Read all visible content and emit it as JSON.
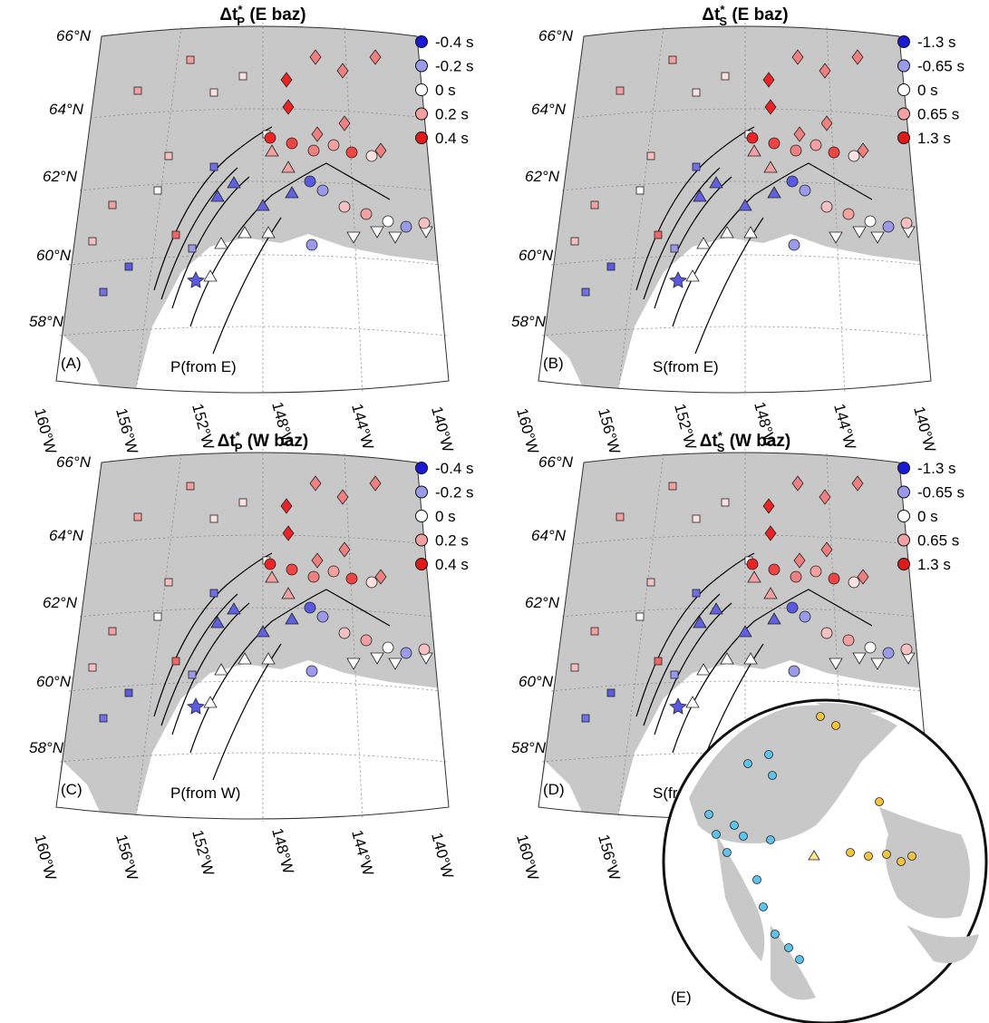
{
  "panels": [
    {
      "title": {
        "main": "Δt",
        "sup": "*",
        "sub": "P",
        "rest": " (E baz)"
      },
      "letter": "(A)",
      "phase": "P(from E)",
      "legend": [
        {
          "label": "-0.4 s",
          "color": "#1a1ad6"
        },
        {
          "label": "-0.2 s",
          "color": "#9a9aea"
        },
        {
          "label": "0 s",
          "color": "#ffffff"
        },
        {
          "label": "0.2 s",
          "color": "#f2a0a0"
        },
        {
          "label": "0.4 s",
          "color": "#e21a1a"
        }
      ]
    },
    {
      "title": {
        "main": "Δt",
        "sup": "*",
        "sub": "S",
        "rest": " (E baz)"
      },
      "letter": "(B)",
      "phase": "S(from E)",
      "legend": [
        {
          "label": "-1.3 s",
          "color": "#1a1ad6"
        },
        {
          "label": "-0.65 s",
          "color": "#9a9aea"
        },
        {
          "label": "0 s",
          "color": "#ffffff"
        },
        {
          "label": "0.65 s",
          "color": "#f2a0a0"
        },
        {
          "label": "1.3 s",
          "color": "#e21a1a"
        }
      ]
    },
    {
      "title": {
        "main": "Δt",
        "sup": "*",
        "sub": "P",
        "rest": " (W baz)"
      },
      "letter": "(C)",
      "phase": "P(from W)",
      "legend": [
        {
          "label": "-0.4 s",
          "color": "#1a1ad6"
        },
        {
          "label": "-0.2 s",
          "color": "#9a9aea"
        },
        {
          "label": "0 s",
          "color": "#ffffff"
        },
        {
          "label": "0.2 s",
          "color": "#f2a0a0"
        },
        {
          "label": "0.4 s",
          "color": "#e21a1a"
        }
      ]
    },
    {
      "title": {
        "main": "Δt",
        "sup": "*",
        "sub": "S",
        "rest": " (W baz)"
      },
      "letter": "(D)",
      "phase": "S(from W)",
      "legend": [
        {
          "label": "-1.3 s",
          "color": "#1a1ad6"
        },
        {
          "label": "-0.65 s",
          "color": "#9a9aea"
        },
        {
          "label": "0 s",
          "color": "#ffffff"
        },
        {
          "label": "0.65 s",
          "color": "#f2a0a0"
        },
        {
          "label": "1.3 s",
          "color": "#e21a1a"
        }
      ]
    }
  ],
  "lat_labels": [
    "66°N",
    "64°N",
    "62°N",
    "60°N",
    "58°N"
  ],
  "lon_labels": [
    "160°W",
    "156°W",
    "152°W",
    "148°W",
    "144°W",
    "140°W"
  ],
  "globe_label": "(E)"
}
